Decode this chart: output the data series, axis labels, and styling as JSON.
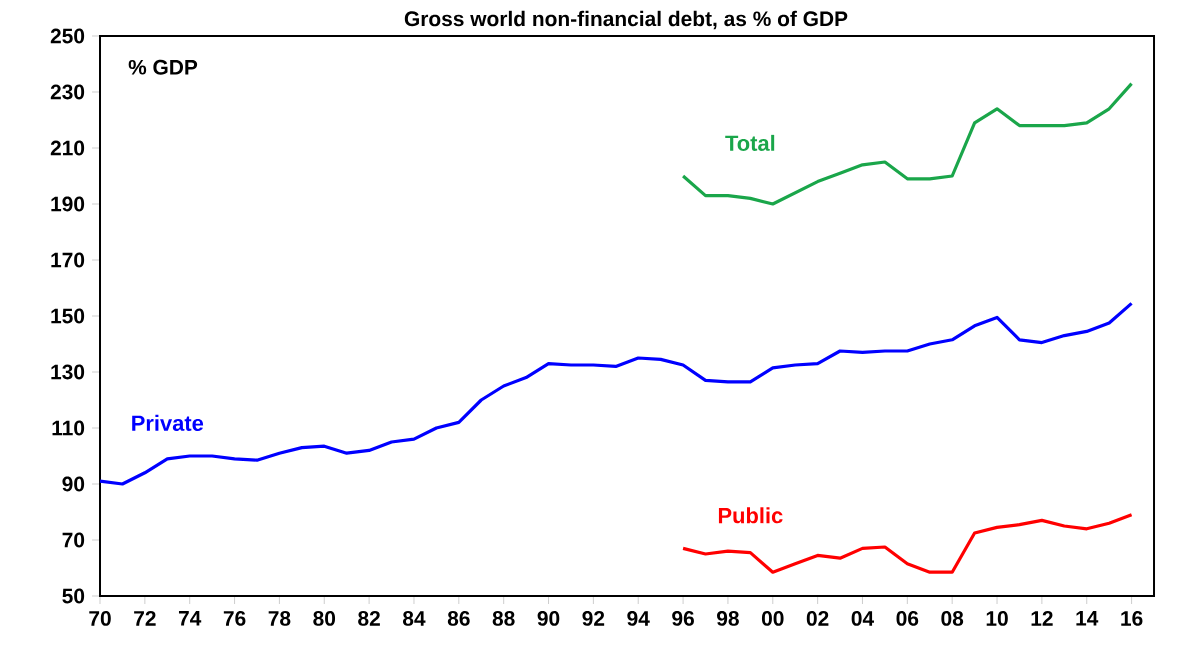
{
  "chart_data": {
    "type": "line",
    "title": "Gross world non-financial debt, as % of GDP",
    "ylabel": "% GDP",
    "series": [
      {
        "name": "Total",
        "color": "#1aa64a",
        "x": [
          1996,
          1997,
          1998,
          1999,
          2000,
          2001,
          2002,
          2003,
          2004,
          2005,
          2006,
          2007,
          2008,
          2009,
          2010,
          2011,
          2012,
          2013,
          2014,
          2015,
          2016
        ],
        "values": [
          200,
          193,
          193,
          192,
          190,
          194,
          198,
          201,
          204,
          205,
          199,
          199,
          200,
          219,
          224,
          218,
          218,
          218,
          219,
          224,
          233
        ]
      },
      {
        "name": "Private",
        "color": "#0000ff",
        "x": [
          1970,
          1971,
          1972,
          1973,
          1974,
          1975,
          1976,
          1977,
          1978,
          1979,
          1980,
          1981,
          1982,
          1983,
          1984,
          1985,
          1986,
          1987,
          1988,
          1989,
          1990,
          1991,
          1992,
          1993,
          1994,
          1995,
          1996,
          1997,
          1998,
          1999,
          2000,
          2001,
          2002,
          2003,
          2004,
          2005,
          2006,
          2007,
          2008,
          2009,
          2010,
          2011,
          2012,
          2013,
          2014,
          2015,
          2016
        ],
        "values": [
          91,
          90,
          94,
          99,
          100,
          100,
          99,
          98.5,
          101,
          103,
          103.5,
          101,
          102,
          105,
          106,
          110,
          112,
          120,
          125,
          128,
          133,
          132.5,
          132.5,
          132,
          135,
          134.5,
          132.5,
          127,
          126.5,
          126.5,
          131.5,
          132.5,
          133,
          137.5,
          137,
          137.5,
          137.5,
          140,
          141.5,
          146.5,
          149.5,
          141.5,
          140.5,
          143,
          144.5,
          147.5,
          154.5
        ]
      },
      {
        "name": "Public",
        "color": "#ff0000",
        "x": [
          1996,
          1997,
          1998,
          1999,
          2000,
          2001,
          2002,
          2003,
          2004,
          2005,
          2006,
          2007,
          2008,
          2009,
          2010,
          2011,
          2012,
          2013,
          2014,
          2015,
          2016
        ],
        "values": [
          67,
          65,
          66,
          65.5,
          58.5,
          61.5,
          64.5,
          63.5,
          67,
          67.5,
          61.5,
          58.5,
          58.5,
          72.5,
          74.5,
          75.5,
          77,
          75,
          74,
          76,
          79
        ]
      }
    ],
    "xlim": [
      1970,
      2017
    ],
    "ylim": [
      50,
      250
    ],
    "xticks": [
      {
        "value": 1970,
        "label": "70"
      },
      {
        "value": 1972,
        "label": "72"
      },
      {
        "value": 1974,
        "label": "74"
      },
      {
        "value": 1976,
        "label": "76"
      },
      {
        "value": 1978,
        "label": "78"
      },
      {
        "value": 1980,
        "label": "80"
      },
      {
        "value": 1982,
        "label": "82"
      },
      {
        "value": 1984,
        "label": "84"
      },
      {
        "value": 1986,
        "label": "86"
      },
      {
        "value": 1988,
        "label": "88"
      },
      {
        "value": 1990,
        "label": "90"
      },
      {
        "value": 1992,
        "label": "92"
      },
      {
        "value": 1994,
        "label": "94"
      },
      {
        "value": 1996,
        "label": "96"
      },
      {
        "value": 1998,
        "label": "98"
      },
      {
        "value": 2000,
        "label": "00"
      },
      {
        "value": 2002,
        "label": "02"
      },
      {
        "value": 2004,
        "label": "04"
      },
      {
        "value": 2006,
        "label": "06"
      },
      {
        "value": 2008,
        "label": "08"
      },
      {
        "value": 2010,
        "label": "10"
      },
      {
        "value": 2012,
        "label": "12"
      },
      {
        "value": 2014,
        "label": "14"
      },
      {
        "value": 2016,
        "label": "16"
      }
    ],
    "yticks": [
      50,
      70,
      90,
      110,
      130,
      150,
      170,
      190,
      210,
      230,
      250
    ]
  }
}
